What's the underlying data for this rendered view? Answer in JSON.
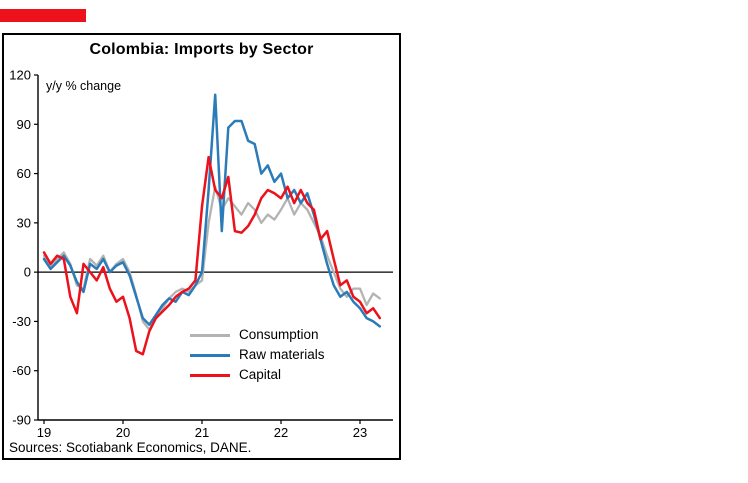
{
  "header": {
    "accent_color": "#ec111a"
  },
  "chart_data": {
    "type": "line",
    "title": "Colombia: Imports by Sector",
    "ylabel": "y/y % change",
    "xlabel": "",
    "grid": false,
    "legend_position": "inside lower center",
    "ylim": [
      -90,
      120
    ],
    "yticks": [
      120,
      90,
      60,
      30,
      0,
      -30,
      -60,
      -90
    ],
    "xticks": [
      {
        "t": 2019,
        "label": "19"
      },
      {
        "t": 2020,
        "label": "20"
      },
      {
        "t": 2021,
        "label": "21"
      },
      {
        "t": 2022,
        "label": "22"
      },
      {
        "t": 2023,
        "label": "23"
      }
    ],
    "x_start": 2019,
    "x_step_years": 0.0833333,
    "frequency": "monthly",
    "series": [
      {
        "name": "Consumption",
        "color": "#b3b3b3",
        "values": [
          10,
          3,
          8,
          12,
          5,
          -8,
          -10,
          8,
          4,
          10,
          0,
          5,
          8,
          0,
          -14,
          -30,
          -35,
          -28,
          -22,
          -16,
          -12,
          -10,
          -12,
          -8,
          -5,
          30,
          52,
          38,
          45,
          40,
          35,
          42,
          38,
          30,
          35,
          32,
          38,
          45,
          35,
          42,
          38,
          30,
          22,
          10,
          0,
          -10,
          -15,
          -10,
          -10,
          -20,
          -13,
          -16
        ]
      },
      {
        "name": "Raw materials",
        "color": "#2b7bb9",
        "values": [
          8,
          2,
          6,
          10,
          4,
          -6,
          -12,
          5,
          2,
          8,
          0,
          4,
          6,
          -2,
          -15,
          -28,
          -32,
          -26,
          -20,
          -16,
          -18,
          -12,
          -14,
          -8,
          0,
          50,
          108,
          25,
          88,
          92,
          92,
          80,
          78,
          60,
          65,
          55,
          60,
          45,
          50,
          42,
          48,
          35,
          20,
          5,
          -8,
          -15,
          -12,
          -18,
          -22,
          -28,
          -30,
          -33
        ]
      },
      {
        "name": "Capital",
        "color": "#ec111a",
        "values": [
          12,
          5,
          10,
          8,
          -15,
          -25,
          5,
          0,
          -5,
          3,
          -10,
          -18,
          -15,
          -28,
          -48,
          -50,
          -36,
          -28,
          -24,
          -20,
          -15,
          -12,
          -10,
          -5,
          40,
          70,
          50,
          45,
          58,
          25,
          24,
          28,
          35,
          45,
          50,
          48,
          45,
          52,
          42,
          50,
          42,
          38,
          20,
          25,
          8,
          -8,
          -5,
          -15,
          -18,
          -25,
          -22,
          -28
        ]
      }
    ]
  },
  "footer": {
    "source": "Sources: Scotiabank Economics, DANE."
  }
}
